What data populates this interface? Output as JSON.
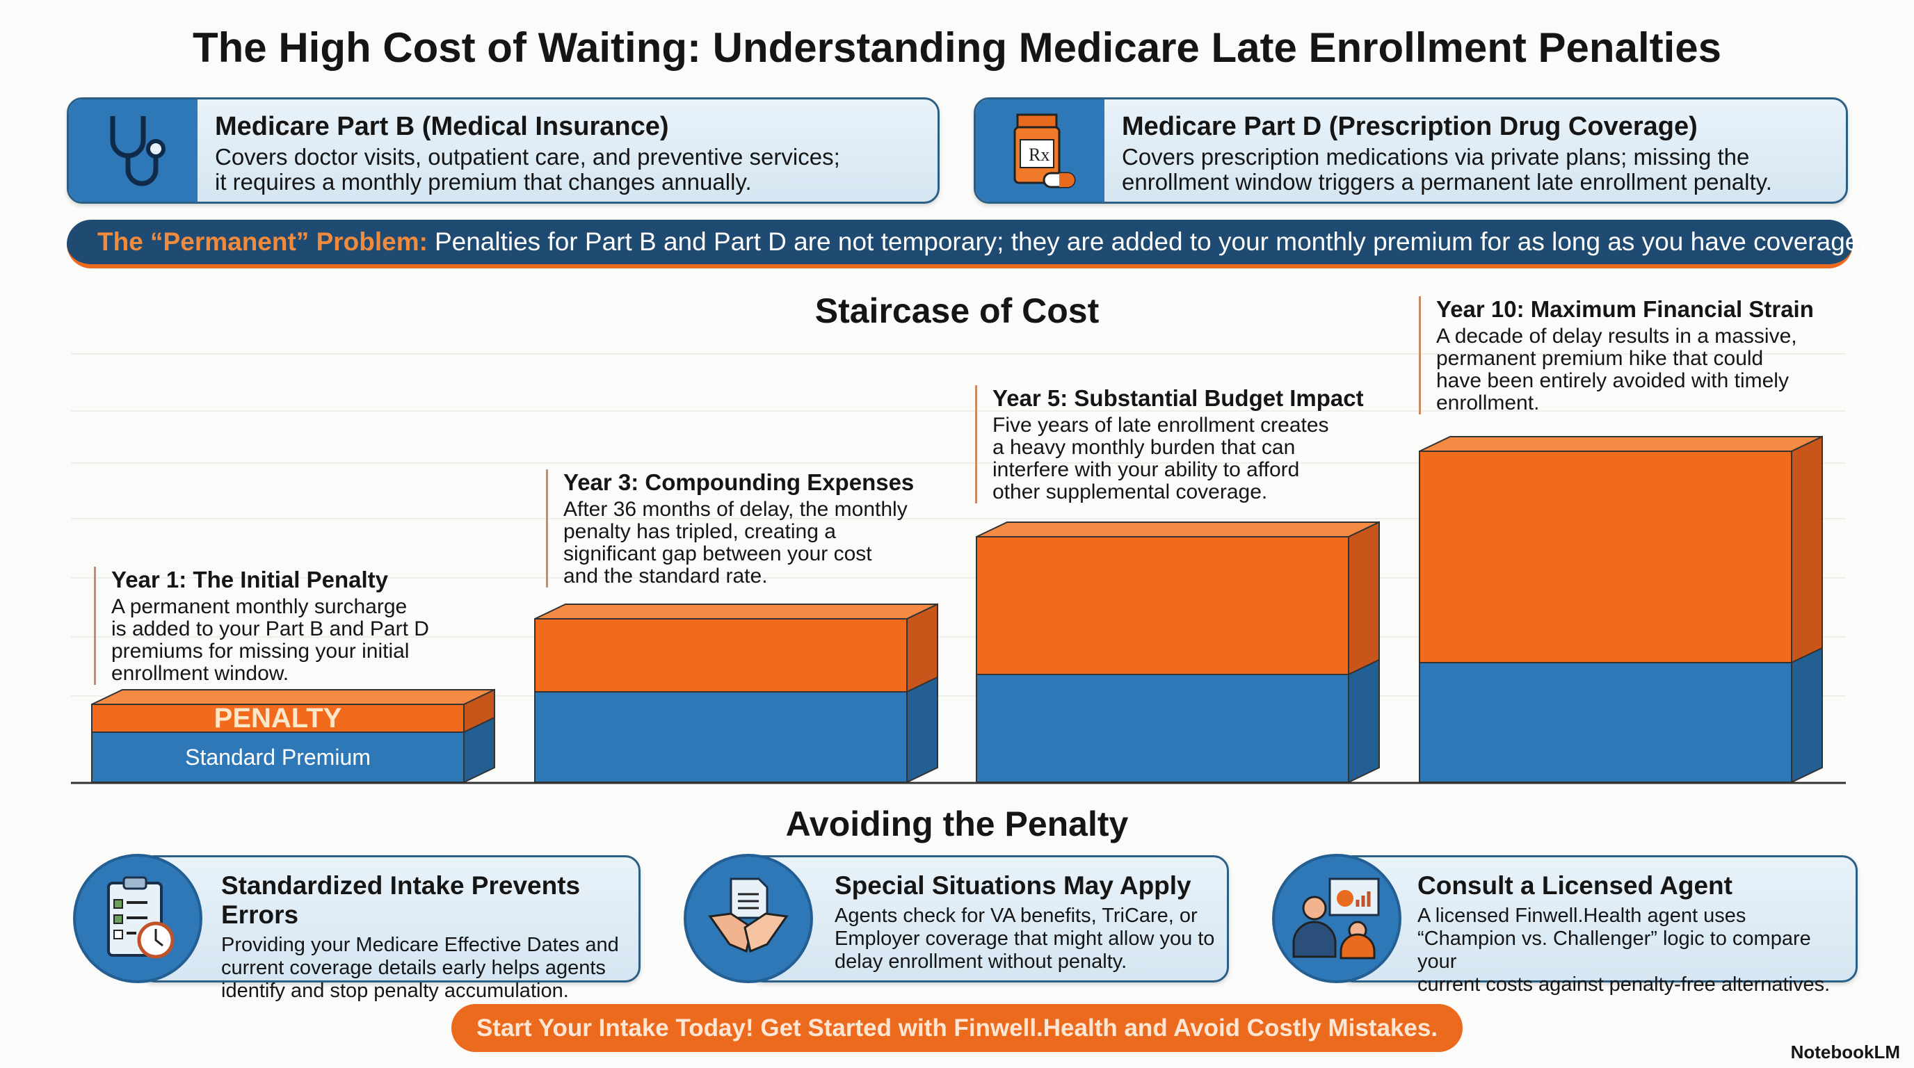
{
  "title": "The High Cost of Waiting: Understanding Medicare Late Enrollment Penalties",
  "parts": [
    {
      "icon": "stethoscope-icon",
      "title": "Medicare Part B (Medical Insurance)",
      "line1": "Covers doctor visits, outpatient care, and preventive services;",
      "line2": "it requires a monthly premium that changes annually."
    },
    {
      "icon": "prescription-bottle-icon",
      "title": "Medicare Part D (Prescription Drug Coverage)",
      "line1": "Covers prescription medications via private plans; missing the",
      "line2": "enrollment window triggers a permanent late enrollment penalty."
    }
  ],
  "banner": {
    "label": "The “Permanent” Problem:",
    "text": "Penalties for Part B and Part D are not temporary; they are added to your monthly premium for as long as you have coverage."
  },
  "staircase": {
    "title": "Staircase of Cost",
    "penalty_label": "PENALTY",
    "standard_label": "Standard Premium",
    "colors": {
      "penalty": "#f26a1b",
      "standard": "#2f78b8"
    },
    "steps": [
      {
        "title": "Year 1: The Initial Penalty",
        "lines": [
          "A permanent monthly surcharge",
          "is added to your Part B and Part D",
          "premiums for missing your initial",
          "enrollment window."
        ]
      },
      {
        "title": "Year 3: Compounding Expenses",
        "lines": [
          "After 36 months of delay, the monthly",
          "penalty has tripled, creating a",
          "significant gap between your cost",
          "and the standard rate."
        ]
      },
      {
        "title": "Year 5: Substantial Budget Impact",
        "lines": [
          "Five years of late enrollment creates",
          "a heavy monthly burden that can",
          "interfere with your ability to afford",
          "other supplemental coverage."
        ]
      },
      {
        "title": "Year 10: Maximum Financial Strain",
        "lines": [
          "A decade of delay results in a massive,",
          "permanent premium hike that could",
          "have been entirely avoided with timely",
          "enrollment."
        ]
      }
    ]
  },
  "avoid": {
    "title": "Avoiding the Penalty",
    "items": [
      {
        "icon": "clipboard-clock-icon",
        "title": "Standardized Intake Prevents Errors",
        "lines": [
          "Providing your Medicare Effective Dates and",
          "current coverage details early helps agents",
          "identify and stop penalty accumulation."
        ]
      },
      {
        "icon": "handshake-icon",
        "title": "Special Situations May Apply",
        "lines": [
          "Agents check for VA benefits, TriCare, or",
          "Employer coverage that might allow you to",
          "delay enrollment without penalty."
        ]
      },
      {
        "icon": "agent-consult-icon",
        "title": "Consult a Licensed Agent",
        "lines": [
          "A licensed Finwell.Health agent uses",
          "“Champion vs. Challenger” logic to compare your",
          "current costs against penalty-free alternatives."
        ]
      }
    ]
  },
  "cta": "Start Your Intake Today! Get Started with Finwell.Health and Avoid Costly Mistakes.",
  "watermark": "NotebookLM"
}
